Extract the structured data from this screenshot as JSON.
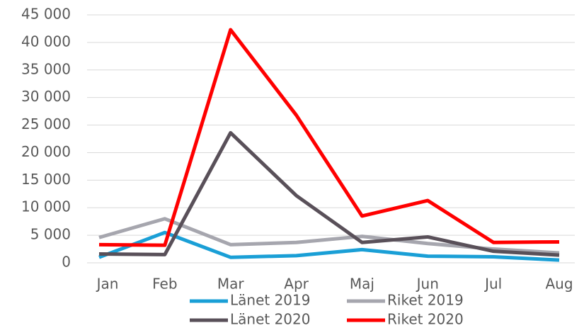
{
  "chart_data": {
    "type": "line",
    "categories": [
      "Jan",
      "Feb",
      "Mar",
      "Apr",
      "Maj",
      "Jun",
      "Jul",
      "Aug"
    ],
    "series": [
      {
        "name": "Länet 2019",
        "color": "#1a9fd6",
        "values": [
          1000,
          5500,
          1000,
          1300,
          2400,
          1200,
          1100,
          500
        ]
      },
      {
        "name": "Riket 2019",
        "color": "#a6a6ae",
        "values": [
          4600,
          8000,
          3300,
          3700,
          4800,
          3500,
          2500,
          1800
        ]
      },
      {
        "name": "Länet 2020",
        "color": "#595059",
        "values": [
          1600,
          1500,
          23600,
          12200,
          3700,
          4700,
          2100,
          1400
        ]
      },
      {
        "name": "Riket 2020",
        "color": "#ff0000",
        "values": [
          3300,
          3200,
          42300,
          26800,
          8500,
          11300,
          3700,
          3800
        ]
      }
    ],
    "ylim": [
      0,
      45000
    ],
    "yticks": [
      0,
      {
        "value": 5000,
        "label": "5 000"
      },
      {
        "value": 10000,
        "label": "10 000"
      },
      {
        "value": 15000,
        "label": "15 000"
      },
      {
        "value": 20000,
        "label": "20 000"
      },
      {
        "value": 25000,
        "label": "25 000"
      },
      {
        "value": 30000,
        "label": "30 000"
      },
      {
        "value": 35000,
        "label": "35 000"
      },
      {
        "value": 40000,
        "label": "40 000"
      },
      {
        "value": 45000,
        "label": "45 000"
      }
    ],
    "grid": true,
    "legend": "bottom"
  }
}
